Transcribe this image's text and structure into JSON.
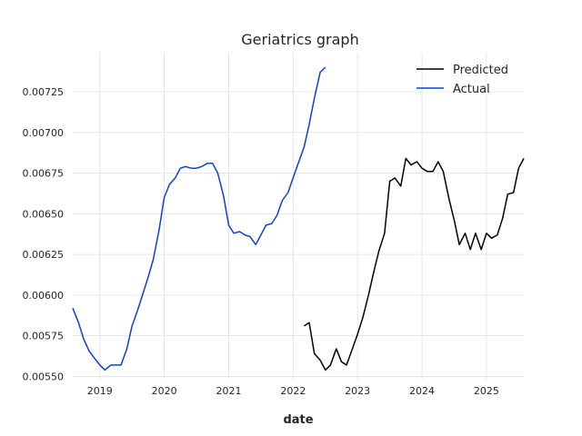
{
  "chart_data": {
    "type": "line",
    "title": "Geriatrics graph",
    "xlabel": "date",
    "ylabel": "",
    "xlim": [
      2018.58,
      2025.58
    ],
    "ylim": [
      0.00548,
      0.00749
    ],
    "x_ticks": [
      2019,
      2020,
      2021,
      2022,
      2023,
      2024,
      2025
    ],
    "x_tick_labels": [
      "2019",
      "2020",
      "2021",
      "2022",
      "2023",
      "2024",
      "2025"
    ],
    "y_ticks": [
      0.0055,
      0.00575,
      0.006,
      0.00625,
      0.0065,
      0.00675,
      0.007,
      0.00725
    ],
    "y_tick_labels": [
      "0.00550",
      "0.00575",
      "0.00600",
      "0.00625",
      "0.00650",
      "0.00675",
      "0.00700",
      "0.00725"
    ],
    "grid": true,
    "legend": "top-right",
    "series": [
      {
        "name": "Predicted",
        "color": "#000000",
        "x": [
          2022.17,
          2022.25,
          2022.33,
          2022.42,
          2022.5,
          2022.58,
          2022.67,
          2022.75,
          2022.83,
          2022.92,
          2023.0,
          2023.08,
          2023.17,
          2023.25,
          2023.33,
          2023.42,
          2023.5,
          2023.58,
          2023.67,
          2023.75,
          2023.83,
          2023.92,
          2024.0,
          2024.08,
          2024.17,
          2024.25,
          2024.33,
          2024.42,
          2024.5,
          2024.58,
          2024.67,
          2024.75,
          2024.83,
          2024.92,
          2025.0,
          2025.08,
          2025.17,
          2025.25,
          2025.33,
          2025.42,
          2025.5,
          2025.58
        ],
        "y": [
          0.00581,
          0.00583,
          0.00564,
          0.0056,
          0.00554,
          0.00557,
          0.00567,
          0.00559,
          0.00557,
          0.00567,
          0.00576,
          0.00586,
          0.006,
          0.00614,
          0.00627,
          0.00638,
          0.0067,
          0.00672,
          0.00667,
          0.00684,
          0.0068,
          0.00682,
          0.00678,
          0.00676,
          0.00676,
          0.00682,
          0.00676,
          0.00659,
          0.00646,
          0.00631,
          0.00638,
          0.00628,
          0.00638,
          0.00628,
          0.00638,
          0.00635,
          0.00637,
          0.00647,
          0.00662,
          0.00663,
          0.00678,
          0.00684
        ]
      },
      {
        "name": "Actual",
        "color": "#0a3fe0",
        "x": [
          2018.58,
          2018.67,
          2018.75,
          2018.83,
          2018.92,
          2019.0,
          2019.08,
          2019.17,
          2019.25,
          2019.33,
          2019.42,
          2019.5,
          2019.58,
          2019.67,
          2019.75,
          2019.83,
          2019.92,
          2020.0,
          2020.08,
          2020.17,
          2020.25,
          2020.33,
          2020.42,
          2020.5,
          2020.58,
          2020.67,
          2020.75,
          2020.83,
          2020.92,
          2021.0,
          2021.08,
          2021.17,
          2021.25,
          2021.33,
          2021.42,
          2021.5,
          2021.58,
          2021.67,
          2021.75,
          2021.83,
          2021.92,
          2022.0,
          2022.08,
          2022.17,
          2022.25,
          2022.33,
          2022.42,
          2022.5
        ],
        "y": [
          0.00592,
          0.00583,
          0.00573,
          0.00566,
          0.00561,
          0.00557,
          0.00554,
          0.00557,
          0.00557,
          0.00557,
          0.00567,
          0.00581,
          0.0059,
          0.00601,
          0.00611,
          0.00622,
          0.0064,
          0.0066,
          0.00668,
          0.00672,
          0.00678,
          0.00679,
          0.00678,
          0.00678,
          0.00679,
          0.00681,
          0.00681,
          0.00675,
          0.00661,
          0.00643,
          0.00638,
          0.00639,
          0.00637,
          0.00636,
          0.00631,
          0.00637,
          0.00643,
          0.00644,
          0.00649,
          0.00658,
          0.00663,
          0.00672,
          0.00681,
          0.00691,
          0.00705,
          0.00721,
          0.00737,
          0.0074
        ]
      }
    ]
  }
}
